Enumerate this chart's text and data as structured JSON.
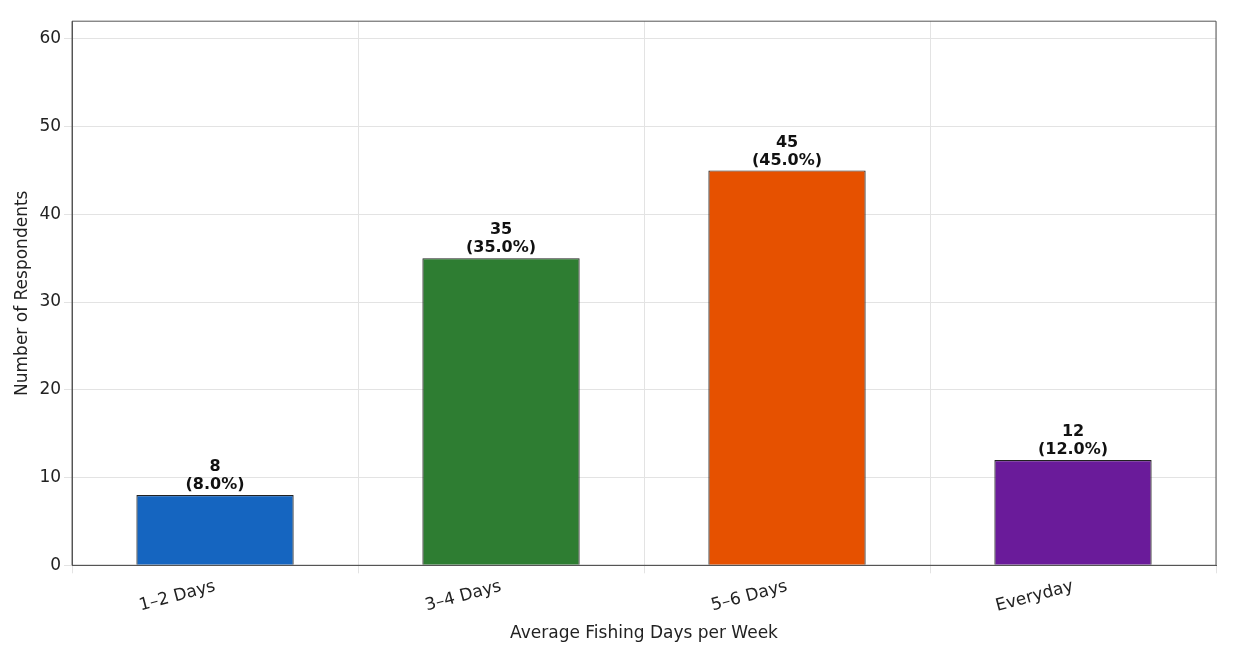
{
  "chart_data": {
    "type": "bar",
    "xlabel": "Average Fishing Days per Week",
    "ylabel": "Number of Respondents",
    "categories": [
      "1–2 Days",
      "3–4 Days",
      "5–6 Days",
      "Everyday"
    ],
    "values": [
      8,
      35,
      45,
      12
    ],
    "colors": [
      "#1565c0",
      "#2e7d32",
      "#e65100",
      "#6a1b9a"
    ],
    "value_labels": [
      "8\n(8.0%)",
      "35\n(35.0%)",
      "45\n(45.0%)",
      "12\n(12.0%)"
    ],
    "ylim": [
      0,
      62
    ],
    "yticks": [
      0,
      10,
      20,
      30,
      40,
      50,
      60
    ],
    "grid": true,
    "legend": false
  }
}
